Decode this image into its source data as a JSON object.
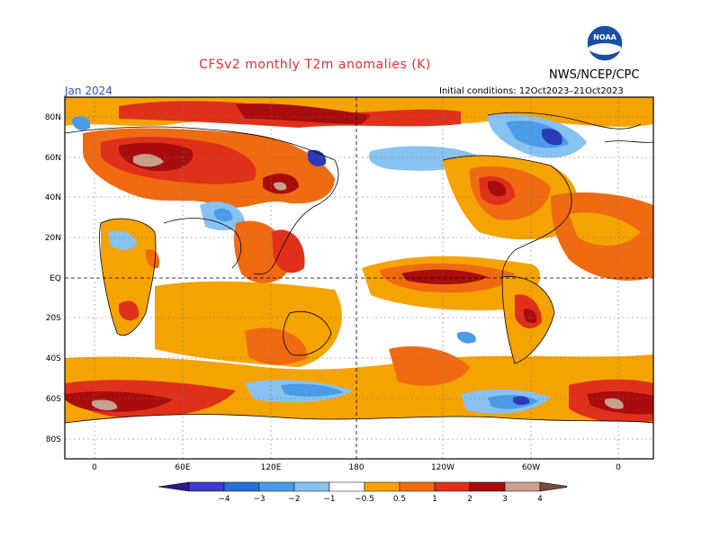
{
  "title": "CFSv2 monthly T2m anomalies (K)",
  "agency": "NWS/NCEP/CPC",
  "logo_text": "NOAA",
  "valid_period": "Jan 2024",
  "initial_conditions": "Initial conditions: 12Oct2023–21Oct2023",
  "lat_labels": [
    "80N",
    "60N",
    "40N",
    "20N",
    "EQ",
    "20S",
    "40S",
    "60S",
    "80S"
  ],
  "lon_labels": [
    "0",
    "60E",
    "120E",
    "180",
    "120W",
    "60W",
    "0"
  ],
  "colorbar": {
    "labels": [
      "−4",
      "−3",
      "−2",
      "−1",
      "−0.5",
      "0.5",
      "1",
      "2",
      "3",
      "4"
    ],
    "colors": [
      "#2a1a8c",
      "#3c3ccf",
      "#2a6fd8",
      "#4a9be8",
      "#87c2f0",
      "#ffffff",
      "#f5a300",
      "#f06a12",
      "#e0301a",
      "#a80c0c",
      "#c8a090",
      "#7a4a3a"
    ]
  },
  "palette": {
    "anom_neg_strong": "#2a3ab8",
    "anom_neg_mid": "#4a9be8",
    "anom_neg_light": "#87c2f0",
    "anom_pos_light": "#f5a300",
    "anom_pos_mid": "#f06a12",
    "anom_pos_strong": "#e0301a",
    "anom_pos_vstrong": "#a80c0c",
    "anom_pos_extreme": "#c8a090"
  }
}
